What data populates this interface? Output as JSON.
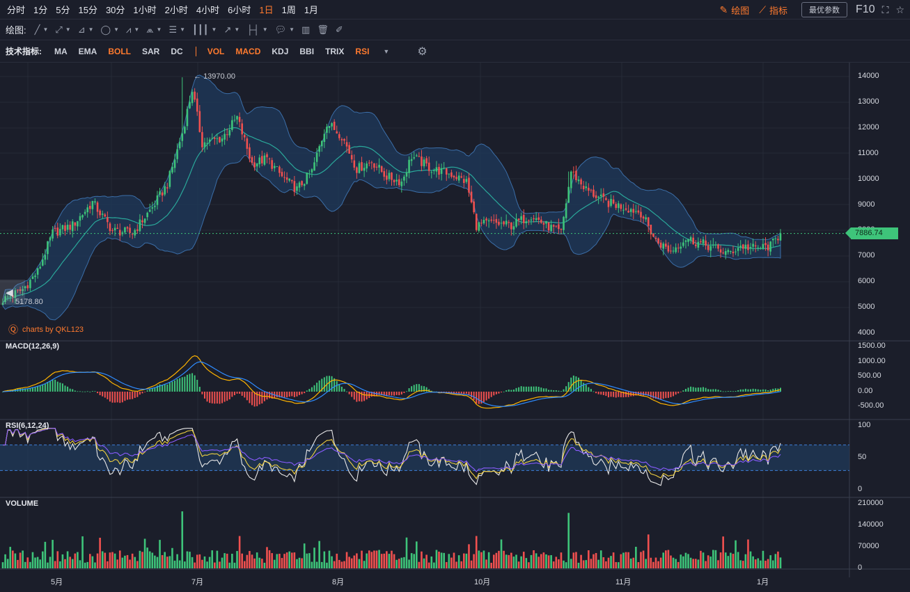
{
  "toolbar": {
    "timeframes": [
      "分时",
      "1分",
      "5分",
      "15分",
      "30分",
      "1小时",
      "2小时",
      "4小时",
      "6小时",
      "1日",
      "1周",
      "1月"
    ],
    "active_timeframe": "1日",
    "draw_label": "绘图",
    "indicator_label": "指标",
    "param_label": "最优参数",
    "f10_label": "F10"
  },
  "draw_toolbar": {
    "label": "绘图:"
  },
  "indicator_bar": {
    "label": "技术指标:",
    "main_indicators": [
      "MA",
      "EMA",
      "BOLL",
      "SAR",
      "DC"
    ],
    "sub_indicators": [
      "VOL",
      "MACD",
      "KDJ",
      "BBI",
      "TRIX",
      "RSI"
    ],
    "active": [
      "BOLL",
      "VOL",
      "MACD",
      "RSI"
    ]
  },
  "watermark": "charts by QKL123",
  "chart_data": [
    {
      "type": "candlestick",
      "overlay": "BOLL",
      "y_ticks": [
        14000,
        13000,
        12000,
        11000,
        10000,
        9000,
        8000,
        7000,
        6000,
        5000,
        4000
      ],
      "ylim": [
        4000,
        14000
      ],
      "x_ticks": [
        "5月",
        "7月",
        "8月",
        "10月",
        "11月",
        "1月"
      ],
      "last_price": "7886.74",
      "high_label": "13970.00",
      "low_label": "5178.80",
      "anchors": [
        [
          0,
          5300
        ],
        [
          8,
          5700
        ],
        [
          14,
          6400
        ],
        [
          20,
          7900
        ],
        [
          28,
          8200
        ],
        [
          36,
          9100
        ],
        [
          44,
          8000
        ],
        [
          52,
          7900
        ],
        [
          60,
          8900
        ],
        [
          66,
          9800
        ],
        [
          72,
          11800
        ],
        [
          76,
          13500
        ],
        [
          80,
          11400
        ],
        [
          88,
          11600
        ],
        [
          94,
          12400
        ],
        [
          100,
          10600
        ],
        [
          106,
          10800
        ],
        [
          112,
          10100
        ],
        [
          118,
          9600
        ],
        [
          124,
          10300
        ],
        [
          130,
          12200
        ],
        [
          136,
          11700
        ],
        [
          142,
          10400
        ],
        [
          148,
          10700
        ],
        [
          154,
          10100
        ],
        [
          160,
          9900
        ],
        [
          164,
          10900
        ],
        [
          172,
          10400
        ],
        [
          180,
          10200
        ],
        [
          186,
          9900
        ],
        [
          190,
          8200
        ],
        [
          196,
          8300
        ],
        [
          204,
          8200
        ],
        [
          212,
          8600
        ],
        [
          218,
          8200
        ],
        [
          224,
          7900
        ],
        [
          228,
          10300
        ],
        [
          234,
          9600
        ],
        [
          242,
          9100
        ],
        [
          250,
          8900
        ],
        [
          256,
          8700
        ],
        [
          262,
          7600
        ],
        [
          268,
          7200
        ],
        [
          274,
          7700
        ],
        [
          280,
          7500
        ],
        [
          286,
          7300
        ],
        [
          291,
          7100
        ],
        [
          296,
          7400
        ],
        [
          302,
          7300
        ],
        [
          308,
          7400
        ],
        [
          312,
          7890
        ]
      ]
    },
    {
      "type": "line",
      "title": "MACD(12,26,9)",
      "y_ticks": [
        "1500.00",
        "1000.00",
        "500.00",
        "0.00",
        "-500.00"
      ],
      "ylim": [
        -700,
        1500
      ]
    },
    {
      "type": "line",
      "title": "RSI(6,12,24)",
      "y_ticks": [
        "100",
        "50",
        "0"
      ],
      "ylim": [
        0,
        100
      ],
      "band": [
        30,
        70
      ]
    },
    {
      "type": "bar",
      "title": "VOLUME",
      "y_ticks": [
        "210000",
        "140000",
        "70000",
        "0"
      ],
      "ylim": [
        0,
        210000
      ]
    }
  ],
  "colors": {
    "up": "#3ec47a",
    "down": "#f0504f",
    "accent": "#ff7a2e",
    "boll_mid": "#2aa89a",
    "boll_band": "#1f3a5c",
    "macd_dif": "#ffb400",
    "macd_dea": "#2f8cff",
    "rsi6": "#e8e8e8",
    "rsi12": "#f0d040",
    "rsi24": "#8a5cff"
  }
}
